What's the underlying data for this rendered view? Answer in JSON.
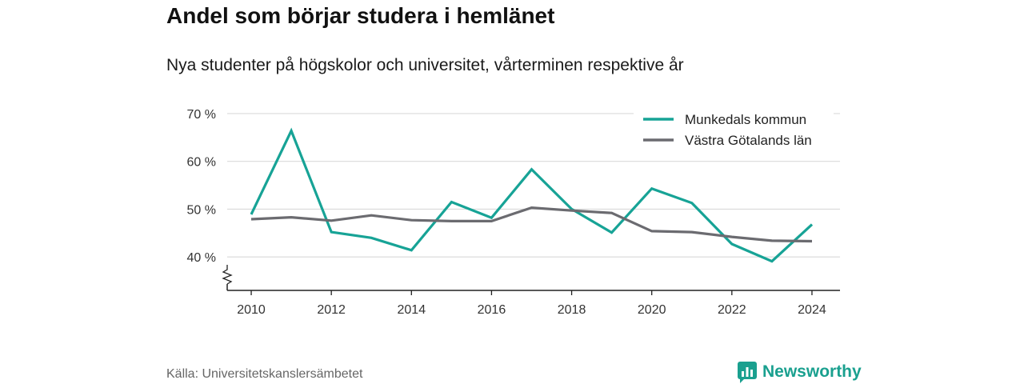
{
  "header": {
    "title": "Andel som börjar studera i hemlänet",
    "subtitle": "Nya studenter på högskolor och universitet, vårterminen respektive år"
  },
  "footer": {
    "source": "Källa: Universitetskanslersämbetet",
    "brand": "Newsworthy"
  },
  "icons": {
    "brand_logo": "newsworthy-logo-icon",
    "axis_break": "axis-break-icon"
  },
  "colors": {
    "munkedal": "#17a396",
    "vastra_gotaland": "#6b6b70",
    "brand": "#1aa08f"
  },
  "chart_data": {
    "type": "line",
    "x": [
      2010,
      2011,
      2012,
      2013,
      2014,
      2015,
      2016,
      2017,
      2018,
      2019,
      2020,
      2021,
      2022,
      2023,
      2024
    ],
    "series": [
      {
        "name": "Munkedals kommun",
        "values": [
          48.9,
          66.4,
          45.2,
          44.0,
          41.4,
          51.5,
          48.2,
          58.3,
          50.0,
          45.1,
          54.3,
          51.3,
          42.7,
          39.1,
          46.8
        ]
      },
      {
        "name": "Västra Götalands län",
        "values": [
          47.9,
          48.3,
          47.6,
          48.7,
          47.7,
          47.5,
          47.5,
          50.3,
          49.7,
          49.2,
          45.4,
          45.2,
          44.2,
          43.4,
          43.3
        ]
      }
    ],
    "xticks": [
      2010,
      2012,
      2014,
      2016,
      2018,
      2020,
      2022,
      2024
    ],
    "xtick_labels": [
      "2010",
      "2012",
      "2014",
      "2016",
      "2018",
      "2020",
      "2022",
      "2024"
    ],
    "yticks": [
      40,
      50,
      60,
      70
    ],
    "ytick_labels": [
      "40 %",
      "50 %",
      "60 %",
      "70 %"
    ],
    "ylim": [
      33,
      72
    ],
    "xlim": [
      2009.4,
      2024.7
    ],
    "grid": true,
    "axis_break": true,
    "legend": "top-right"
  }
}
